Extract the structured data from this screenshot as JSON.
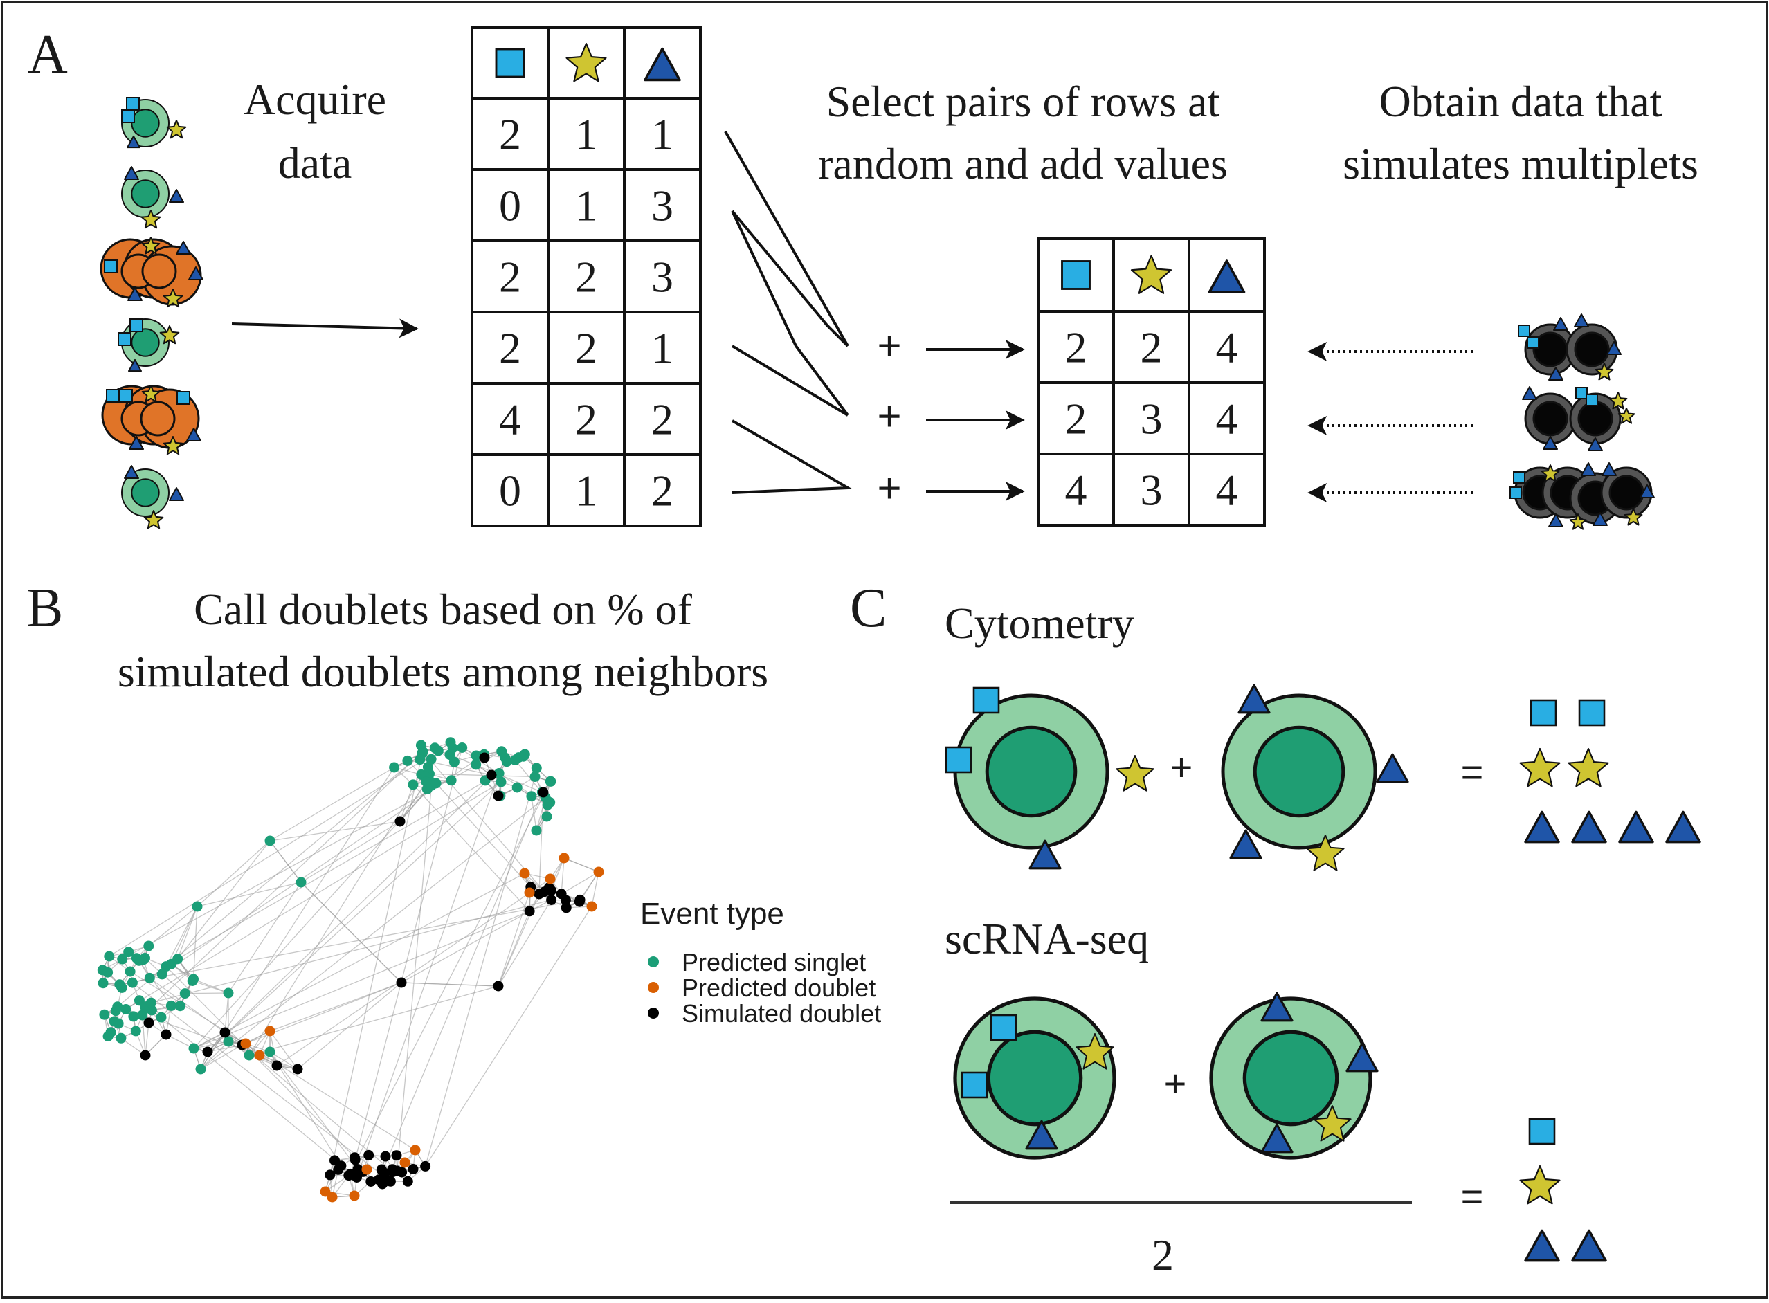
{
  "panel_a": {
    "letter": "A",
    "acquire_line1": "Acquire",
    "acquire_line2": "data",
    "select_line1": "Select pairs of rows at",
    "select_line2": "random and add values",
    "obtain_line1": "Obtain data that",
    "obtain_line2": "simulates multiplets",
    "source_table": [
      [
        "2",
        "1",
        "1"
      ],
      [
        "0",
        "1",
        "3"
      ],
      [
        "2",
        "2",
        "3"
      ],
      [
        "2",
        "2",
        "1"
      ],
      [
        "4",
        "2",
        "2"
      ],
      [
        "0",
        "1",
        "2"
      ]
    ],
    "sum_table": [
      [
        "2",
        "2",
        "4"
      ],
      [
        "2",
        "3",
        "4"
      ],
      [
        "4",
        "3",
        "4"
      ]
    ],
    "plus": "+"
  },
  "panel_b": {
    "letter": "B",
    "title_line1": "Call doublets based on % of",
    "title_line2": "simulated doublets among neighbors",
    "legend_title": "Event type",
    "legend_items": [
      {
        "label": "Predicted singlet",
        "color": "#1b9e77"
      },
      {
        "label": "Predicted doublet",
        "color": "#d95f02"
      },
      {
        "label": "Simulated doublet",
        "color": "#000000"
      }
    ]
  },
  "panel_c": {
    "letter": "C",
    "cytometry_label": "Cytometry",
    "scrna_label": "scRNA-seq",
    "plus": "+",
    "equals": "=",
    "divisor": "2"
  },
  "colors": {
    "square": "#29aee3",
    "star": "#cfc531",
    "triangle": "#1f55a8",
    "cell_outer": "#8fd0a4",
    "cell_inner": "#1f9e73",
    "orange_cell": "#e07428",
    "doublet_cell": "#555555",
    "singlet": "#1b9e77",
    "pred_doublet": "#d95f02",
    "sim_doublet": "#000000"
  },
  "icons": [
    "square-icon",
    "star-icon",
    "triangle-icon",
    "cell-icon",
    "arrow-icon"
  ]
}
